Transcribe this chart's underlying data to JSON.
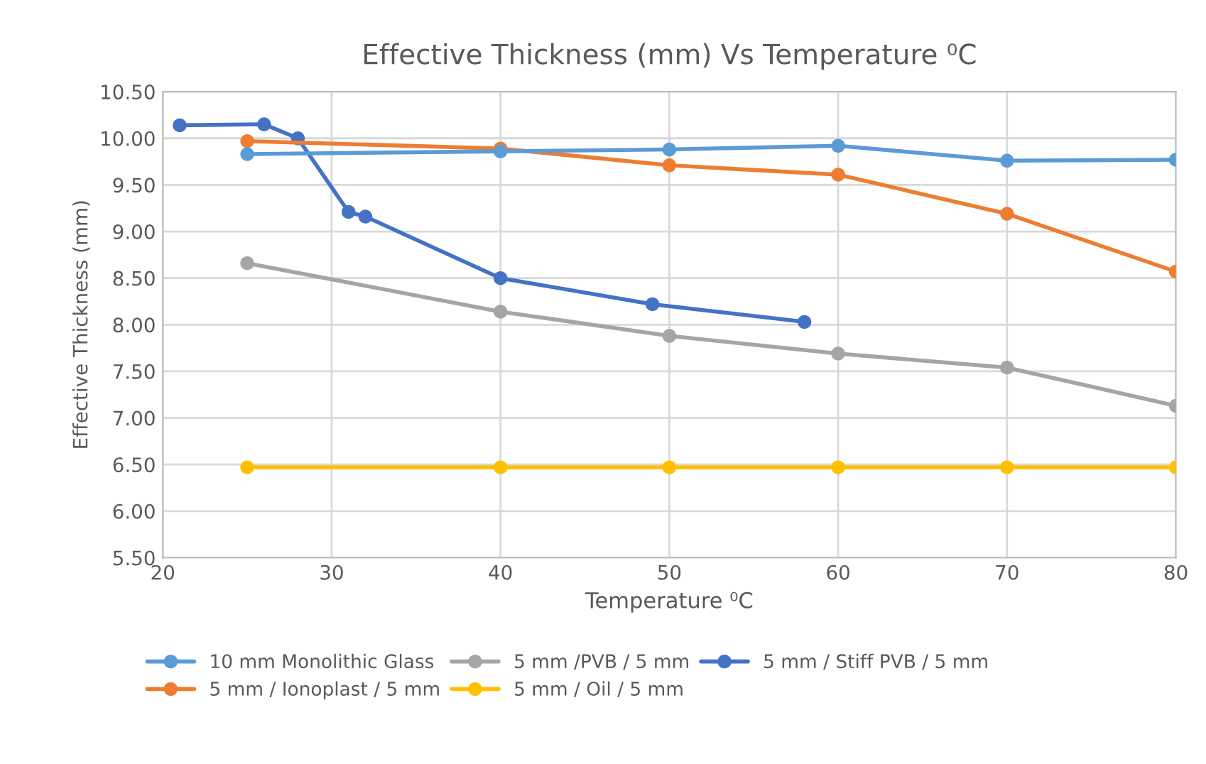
{
  "chart_data": {
    "type": "line",
    "title": "Effective Thickness (mm) Vs Temperature ⁰C",
    "xlabel": "Temperature ⁰C",
    "ylabel": "Effective Thickness (mm)",
    "series": [
      {
        "name": "10 mm Monolithic Glass",
        "color": "#5b9bd5",
        "x": [
          25,
          40,
          50,
          60,
          70,
          80
        ],
        "values": [
          9.83,
          9.86,
          9.88,
          9.92,
          9.76,
          9.77
        ]
      },
      {
        "name": "5 mm / Ionoplast / 5 mm",
        "color": "#ed7d31",
        "x": [
          25,
          40,
          50,
          60,
          70,
          80
        ],
        "values": [
          9.97,
          9.89,
          9.71,
          9.61,
          9.19,
          8.57
        ]
      },
      {
        "name": "5 mm /PVB / 5 mm",
        "color": "#a5a5a5",
        "x": [
          25,
          40,
          50,
          60,
          70,
          80
        ],
        "values": [
          8.66,
          8.14,
          7.88,
          7.69,
          7.54,
          7.13
        ]
      },
      {
        "name": "5 mm / Oil / 5 mm",
        "color": "#ffc000",
        "x": [
          25,
          40,
          50,
          60,
          70,
          80
        ],
        "values": [
          6.47,
          6.47,
          6.47,
          6.47,
          6.47,
          6.47
        ]
      },
      {
        "name": "5 mm / Stiff PVB / 5 mm",
        "color": "#4472c4",
        "x": [
          21,
          26,
          28,
          31,
          32,
          40,
          49,
          58
        ],
        "values": [
          10.14,
          10.15,
          10.0,
          9.21,
          9.16,
          8.5,
          8.22,
          8.03
        ]
      }
    ],
    "xlim": [
      20,
      80
    ],
    "xticks": [
      20,
      30,
      40,
      50,
      60,
      70,
      80
    ],
    "ylim": [
      5.5,
      10.5
    ],
    "yticks": [
      {
        "value": 5.5,
        "label": "5.50"
      },
      {
        "value": 6,
        "label": "6.00"
      },
      {
        "value": 6.5,
        "label": "6.50"
      },
      {
        "value": 7,
        "label": "7.00"
      },
      {
        "value": 7.5,
        "label": "7.50"
      },
      {
        "value": 8,
        "label": "8.00"
      },
      {
        "value": 8.5,
        "label": "8.50"
      },
      {
        "value": 9,
        "label": "9.00"
      },
      {
        "value": 9.5,
        "label": "9.50"
      },
      {
        "value": 10,
        "label": "10.00"
      },
      {
        "value": 10.5,
        "label": "10.50"
      }
    ],
    "grid": true,
    "legend": "bottom",
    "marker": "circle",
    "line_style": "solid"
  }
}
